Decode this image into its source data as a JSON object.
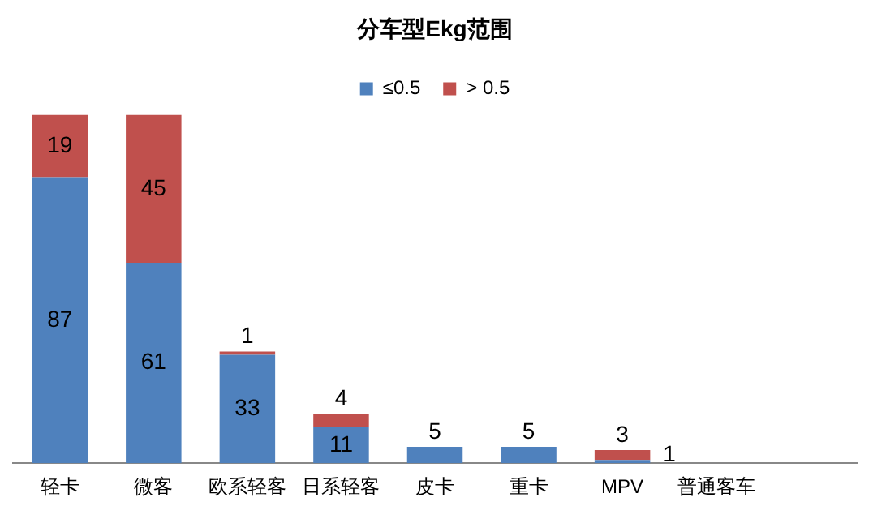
{
  "chart_data": {
    "type": "bar",
    "title": "分车型Ekg范围",
    "stacked": true,
    "legend": "top",
    "grid": false,
    "data_labels": true,
    "tick_labels": "x",
    "categories": [
      "轻卡",
      "微客",
      "欧系轻客",
      "日系轻客",
      "皮卡",
      "重卡",
      "MPV",
      "普通客车",
      null
    ],
    "series": [
      {
        "name": "≤0.5",
        "color": "#4f81bd",
        "values": [
          87,
          61,
          33,
          11,
          5,
          5,
          1,
          null,
          null
        ]
      },
      {
        "name": "> 0.5",
        "color": "#c0504d",
        "values": [
          19,
          45,
          1,
          4,
          null,
          null,
          3,
          null,
          null
        ]
      }
    ]
  }
}
